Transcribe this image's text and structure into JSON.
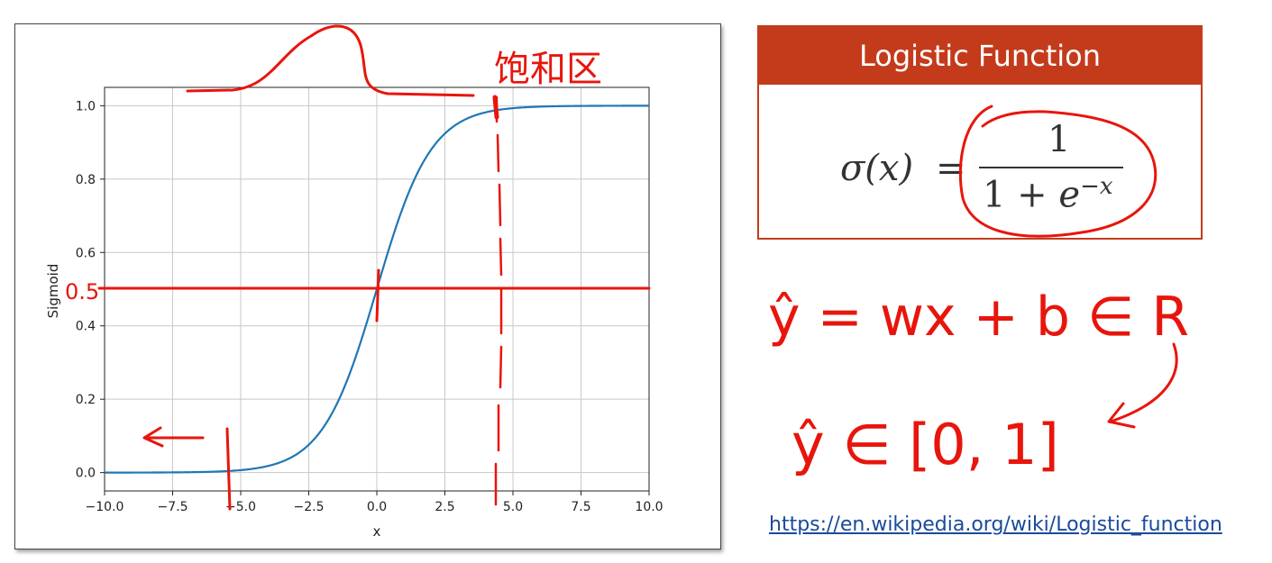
{
  "chart_data": {
    "type": "line",
    "title": "",
    "xlabel": "x",
    "ylabel": "Sigmoid",
    "xlim": [
      -10,
      10
    ],
    "ylim": [
      -0.05,
      1.05
    ],
    "grid": true,
    "legend": "none",
    "x_ticks": [
      -10,
      -7.5,
      -5,
      -2.5,
      0,
      2.5,
      5,
      7.5,
      10
    ],
    "x_tick_labels": [
      "−10.0",
      "−7.5",
      "−5.0",
      "−2.5",
      "0.0",
      "2.5",
      "5.0",
      "7.5",
      "10.0"
    ],
    "y_ticks": [
      0,
      0.2,
      0.4,
      0.6,
      0.8,
      1.0
    ],
    "y_tick_labels": [
      "0.0",
      "0.2",
      "0.4",
      "0.6",
      "0.8",
      "1.0"
    ],
    "series": [
      {
        "function": "sigmoid",
        "color": "#1f77b4",
        "x": [
          -10,
          -8,
          -6,
          -5,
          -4,
          -3,
          -2,
          -1,
          0,
          1,
          2,
          3,
          4,
          5,
          6,
          8,
          10
        ],
        "y": [
          0.0,
          0.0003,
          0.0025,
          0.0067,
          0.018,
          0.047,
          0.119,
          0.269,
          0.5,
          0.731,
          0.881,
          0.953,
          0.982,
          0.993,
          0.998,
          0.9997,
          1.0
        ]
      }
    ]
  },
  "formula_card": {
    "title": "Logistic Function",
    "lhs": "σ(x)",
    "eq": "=",
    "numerator": "1",
    "den_one": "1",
    "den_plus": " + ",
    "den_e": "e",
    "den_exp": "−x"
  },
  "link": {
    "text": "https://en.wikipedia.org/wiki/Logistic_function"
  },
  "annotations": {
    "color": "#e8150c",
    "top_note": "饱和区",
    "half_label": "0.5",
    "eq1": "ŷ = wx + b ∈ R",
    "eq2": "ŷ ∈ [0, 1]"
  }
}
